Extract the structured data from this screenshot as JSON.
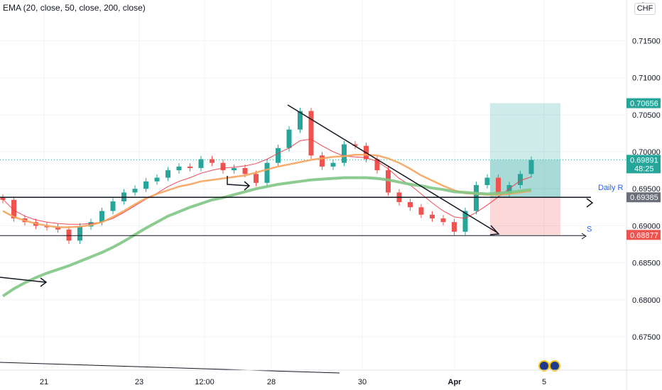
{
  "legend": {
    "indicator": "EMA (20, close, 50, close, 200, close)"
  },
  "currency": "CHF",
  "top_value": "0",
  "drawings": {
    "daily_r_label": "Daily R",
    "s_label": "S"
  },
  "colors": {
    "bull": "#26a69a",
    "bear": "#ef5350",
    "ema20": "#f23645",
    "ema50": "#f7a35c",
    "ema200": "#81c784",
    "target_zone": "#26a69a",
    "stop_zone": "#ef5350",
    "drawing": "#131722",
    "price_label_text": "#2962ff"
  },
  "price_labels": {
    "target": "0.70656",
    "current": "0.69891",
    "countdown": "48:25",
    "daily_r": "0.69385",
    "stop": "0.68877"
  },
  "chart_data": {
    "type": "candlestick",
    "symbol_currency": "CHF",
    "ylim": [
      0.6705,
      0.7205
    ],
    "y_ticks": [
      "0.71500",
      "0.71000",
      "0.70500",
      "0.70000",
      "0.69500",
      "0.69000",
      "0.68500",
      "0.68000",
      "0.67500"
    ],
    "x_ticks": [
      "21",
      "23",
      "12:00",
      "28",
      "30",
      "Apr",
      "5"
    ],
    "series": [
      {
        "name": "EMA 20",
        "values": [
          0.6936,
          0.6921,
          0.6913,
          0.6908,
          0.6905,
          0.6903,
          0.6902,
          0.6902,
          0.6903,
          0.6905,
          0.691,
          0.6918,
          0.6927,
          0.6936,
          0.6944,
          0.6953,
          0.696,
          0.6965,
          0.6971,
          0.6975,
          0.6978,
          0.6979,
          0.6981,
          0.6984,
          0.699,
          0.6998,
          0.7005,
          0.7015,
          0.7017,
          0.7008,
          0.7,
          0.6994,
          0.6993,
          0.6992,
          0.6987,
          0.6977,
          0.6964,
          0.6955,
          0.6943,
          0.6931,
          0.692,
          0.6912,
          0.691,
          0.6918,
          0.6928,
          0.6939,
          0.695,
          0.6961,
          0.6966
        ]
      },
      {
        "name": "EMA 50",
        "values": [
          0.692,
          0.6912,
          0.6907,
          0.6903,
          0.69,
          0.6898,
          0.6898,
          0.6899,
          0.6901,
          0.6905,
          0.6912,
          0.692,
          0.6929,
          0.6937,
          0.6943,
          0.6948,
          0.6953,
          0.6956,
          0.696,
          0.6962,
          0.6964,
          0.6966,
          0.6968,
          0.6972,
          0.6976,
          0.698,
          0.6983,
          0.6986,
          0.6989,
          0.6991,
          0.6993,
          0.6994,
          0.6996,
          0.6996,
          0.6995,
          0.6991,
          0.6985,
          0.6977,
          0.6968,
          0.6961,
          0.6954,
          0.6948,
          0.6944,
          0.6943,
          0.6942,
          0.6942,
          0.6943,
          0.6945,
          0.6947
        ]
      },
      {
        "name": "EMA 200",
        "values": [
          0.6805,
          0.6815,
          0.6823,
          0.683,
          0.6836,
          0.6841,
          0.6846,
          0.6852,
          0.6858,
          0.6864,
          0.6871,
          0.6879,
          0.6888,
          0.6897,
          0.6905,
          0.6913,
          0.6919,
          0.6925,
          0.693,
          0.6935,
          0.6938,
          0.6942,
          0.6946,
          0.695,
          0.6953,
          0.6956,
          0.6958,
          0.696,
          0.6962,
          0.6963,
          0.6964,
          0.6965,
          0.6965,
          0.6965,
          0.6964,
          0.6962,
          0.6959,
          0.6956,
          0.6954,
          0.6951,
          0.6949,
          0.6946,
          0.6945,
          0.6944,
          0.6943,
          0.6944,
          0.6945,
          0.6947,
          0.6949
        ]
      },
      {
        "name": "close",
        "values": [
          0.6935,
          0.691,
          0.6905,
          0.69,
          0.6898,
          0.6895,
          0.688,
          0.6899,
          0.6905,
          0.692,
          0.6933,
          0.6945,
          0.695,
          0.696,
          0.6965,
          0.6975,
          0.698,
          0.6978,
          0.699,
          0.6985,
          0.6975,
          0.6978,
          0.697,
          0.6958,
          0.6985,
          0.7005,
          0.703,
          0.7055,
          0.6995,
          0.698,
          0.6985,
          0.701,
          0.7008,
          0.699,
          0.6975,
          0.6945,
          0.6932,
          0.6925,
          0.6915,
          0.691,
          0.6905,
          0.6892,
          0.692,
          0.6955,
          0.6965,
          0.6943,
          0.6955,
          0.697,
          0.6989
        ]
      }
    ],
    "horizontal_lines": [
      {
        "label": "Daily R",
        "value": 0.69385
      },
      {
        "label": "S",
        "value": 0.68877
      }
    ],
    "position": {
      "entry": 0.69891,
      "target": 0.70656,
      "stop": 0.68877
    }
  }
}
